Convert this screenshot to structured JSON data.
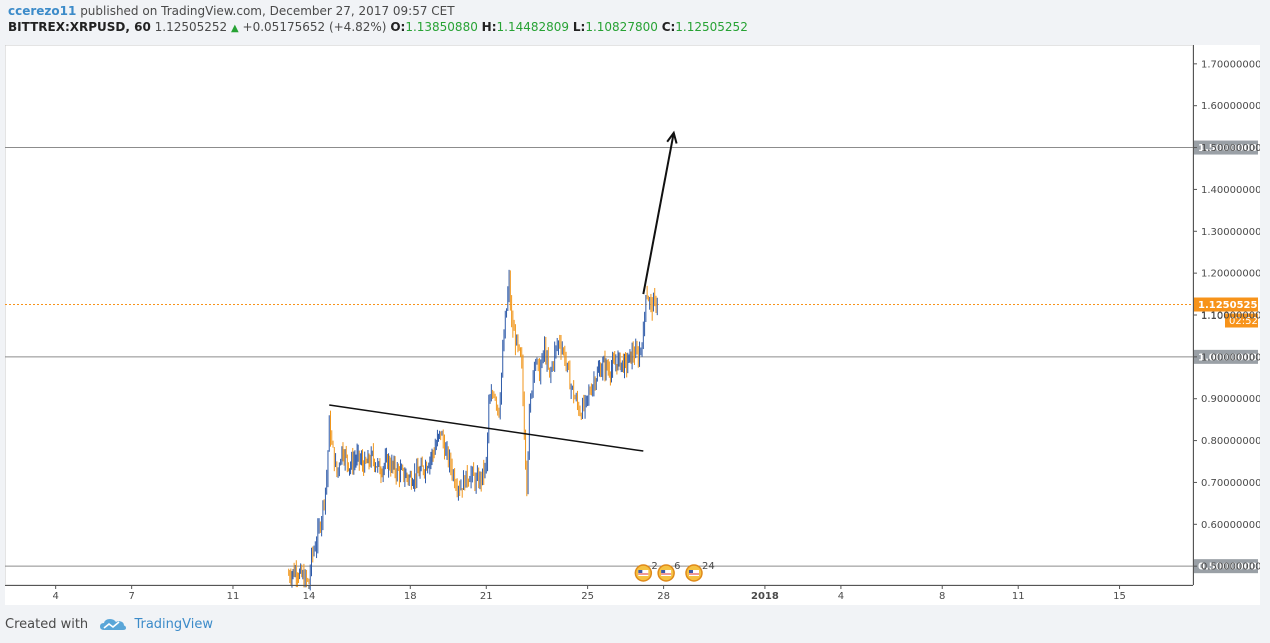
{
  "header": {
    "author": "ccerezo11",
    "published_text": "published on TradingView.com, December 27, 2017 09:57 CET",
    "symbol": "BITTREX:XRPUSD, 60",
    "last_price": "1.12505252",
    "change_arrow": "▲",
    "change": "+0.05175652 (+4.82%)",
    "open_label": "O:",
    "open": "1.13850880",
    "high_label": "H:",
    "high": "1.14482809",
    "low_label": "L:",
    "low": "1.10827800",
    "close_label": "C:",
    "close": "1.12505252"
  },
  "colors": {
    "up": "#27a234",
    "price_line": "#f7931a",
    "badge_grey": "#9aa0a6",
    "candle_up": "#2e5aa8",
    "candle_down": "#f0961b"
  },
  "chart_data": {
    "type": "line",
    "series_kind": "candlestick",
    "x_ticks": [
      {
        "label": "4",
        "t": 4
      },
      {
        "label": "7",
        "t": 7
      },
      {
        "label": "11",
        "t": 11
      },
      {
        "label": "14",
        "t": 14
      },
      {
        "label": "18",
        "t": 18
      },
      {
        "label": "21",
        "t": 21
      },
      {
        "label": "25",
        "t": 25
      },
      {
        "label": "28",
        "t": 28
      },
      {
        "label": "2018",
        "t": 32
      },
      {
        "label": "4",
        "t": 35
      },
      {
        "label": "8",
        "t": 39
      },
      {
        "label": "11",
        "t": 42
      },
      {
        "label": "15",
        "t": 46
      }
    ],
    "x_range": [
      2.0,
      48.9
    ],
    "y_ticks": [
      "0.50000000",
      "0.60000000",
      "0.70000000",
      "0.80000000",
      "0.90000000",
      "1.00000000",
      "1.10000000",
      "1.20000000",
      "1.30000000",
      "1.40000000",
      "1.50000000",
      "1.60000000",
      "1.70000000"
    ],
    "y_range": [
      0.455,
      1.745
    ],
    "horizontal_levels": [
      0.5,
      1.0,
      1.5
    ],
    "level_labels": [
      "0.50000000",
      "1.00000000",
      "1.50000000"
    ],
    "current_price": 1.12505252,
    "current_price_label": "1.12505252",
    "countdown_label": "02:52",
    "partial_tick_label": "1.100",
    "trendline": {
      "from": {
        "t": 14.8,
        "y": 0.885
      },
      "to": {
        "t": 27.2,
        "y": 0.775
      }
    },
    "arrow": {
      "from": {
        "t": 27.2,
        "y": 1.15
      },
      "to": {
        "t": 28.4,
        "y": 1.535
      }
    },
    "price_path": [
      [
        13.2,
        0.48
      ],
      [
        13.5,
        0.49
      ],
      [
        13.8,
        0.47
      ],
      [
        14.0,
        0.46
      ],
      [
        14.1,
        0.52
      ],
      [
        14.3,
        0.56
      ],
      [
        14.5,
        0.62
      ],
      [
        14.7,
        0.71
      ],
      [
        14.8,
        0.84
      ],
      [
        14.9,
        0.79
      ],
      [
        15.1,
        0.72
      ],
      [
        15.3,
        0.78
      ],
      [
        15.6,
        0.74
      ],
      [
        15.9,
        0.76
      ],
      [
        16.2,
        0.74
      ],
      [
        16.5,
        0.76
      ],
      [
        16.8,
        0.73
      ],
      [
        17.1,
        0.75
      ],
      [
        17.4,
        0.73
      ],
      [
        17.7,
        0.72
      ],
      [
        18.0,
        0.71
      ],
      [
        18.3,
        0.72
      ],
      [
        18.6,
        0.74
      ],
      [
        18.9,
        0.77
      ],
      [
        19.2,
        0.82
      ],
      [
        19.4,
        0.77
      ],
      [
        19.6,
        0.74
      ],
      [
        19.8,
        0.7
      ],
      [
        20.0,
        0.69
      ],
      [
        20.2,
        0.71
      ],
      [
        20.4,
        0.72
      ],
      [
        20.6,
        0.7
      ],
      [
        20.8,
        0.71
      ],
      [
        21.0,
        0.74
      ],
      [
        21.1,
        0.88
      ],
      [
        21.3,
        0.92
      ],
      [
        21.5,
        0.87
      ],
      [
        21.7,
        1.05
      ],
      [
        21.9,
        1.18
      ],
      [
        22.0,
        1.08
      ],
      [
        22.2,
        1.03
      ],
      [
        22.4,
        0.98
      ],
      [
        22.5,
        0.82
      ],
      [
        22.6,
        0.7
      ],
      [
        22.7,
        0.86
      ],
      [
        22.9,
        1.0
      ],
      [
        23.1,
        0.96
      ],
      [
        23.3,
        1.02
      ],
      [
        23.5,
        0.95
      ],
      [
        23.7,
        1.01
      ],
      [
        23.9,
        1.04
      ],
      [
        24.1,
        1.0
      ],
      [
        24.3,
        0.94
      ],
      [
        24.5,
        0.9
      ],
      [
        24.7,
        0.87
      ],
      [
        24.9,
        0.88
      ],
      [
        25.1,
        0.92
      ],
      [
        25.3,
        0.95
      ],
      [
        25.6,
        0.98
      ],
      [
        25.9,
        0.97
      ],
      [
        26.2,
        0.99
      ],
      [
        26.5,
        0.98
      ],
      [
        26.8,
        1.01
      ],
      [
        27.0,
        1.0
      ],
      [
        27.2,
        1.05
      ],
      [
        27.3,
        1.16
      ],
      [
        27.5,
        1.12
      ],
      [
        27.7,
        1.13
      ],
      [
        27.8,
        1.125
      ]
    ],
    "annotations": [
      {
        "type": "event-badge",
        "t": 27.2,
        "count": "2"
      },
      {
        "type": "event-badge",
        "t": 28.1,
        "count": "6"
      },
      {
        "type": "event-badge",
        "t": 29.2,
        "count": "24"
      }
    ]
  },
  "footer": {
    "created_with": "Created with",
    "brand": "TradingView"
  }
}
